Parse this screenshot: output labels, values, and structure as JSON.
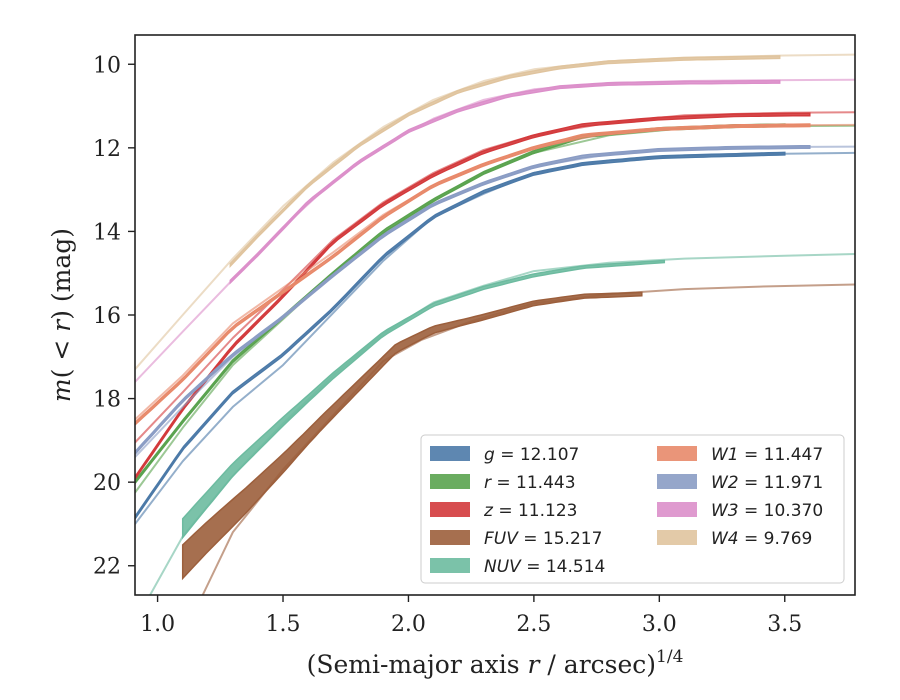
{
  "chart_data": {
    "type": "line",
    "xlabel": "(Semi-major axis r / arcsec)",
    "xlabel_main": "(Semi-major axis ",
    "xlabel_var": "r",
    "xlabel_rest": " / arcsec)",
    "xlabel_sup": "1/4",
    "ylabel": "m(< r) (mag)",
    "ylabel_m": "m",
    "ylabel_paren_open": "(",
    "ylabel_lt": " < ",
    "ylabel_r": "r",
    "ylabel_paren_close": ")",
    "ylabel_unit": " (mag)",
    "xlim": [
      0.91,
      3.78
    ],
    "ylim": [
      22.7,
      9.3
    ],
    "y_inverted": true,
    "xticks": [
      1.0,
      1.5,
      2.0,
      2.5,
      3.0,
      3.5
    ],
    "xtick_labels": [
      "1.0",
      "1.5",
      "2.0",
      "2.5",
      "3.0",
      "3.5"
    ],
    "yticks": [
      10,
      12,
      14,
      16,
      18,
      20,
      22
    ],
    "ytick_labels": [
      "10",
      "12",
      "14",
      "16",
      "18",
      "20",
      "22"
    ],
    "grid": false,
    "legend_position": "lower-right",
    "series": [
      {
        "name": "g",
        "label_value": "= 12.107",
        "color": "#4c7aa8",
        "band": [
          [
            0.91,
            20.85
          ],
          [
            1.1,
            19.2
          ],
          [
            1.3,
            17.85
          ],
          [
            1.5,
            16.95
          ],
          [
            1.7,
            15.85
          ],
          [
            1.9,
            14.6
          ],
          [
            2.1,
            13.65
          ],
          [
            2.3,
            13.05
          ],
          [
            2.5,
            12.62
          ],
          [
            2.7,
            12.38
          ],
          [
            3.0,
            12.22
          ],
          [
            3.3,
            12.17
          ],
          [
            3.5,
            12.14
          ]
        ],
        "tail": [
          [
            0.91,
            21.0
          ],
          [
            1.1,
            19.5
          ],
          [
            1.3,
            18.2
          ],
          [
            1.5,
            17.2
          ],
          [
            1.7,
            15.95
          ],
          [
            1.9,
            14.7
          ],
          [
            2.1,
            13.65
          ],
          [
            2.3,
            13.1
          ],
          [
            2.5,
            12.6
          ],
          [
            2.8,
            12.3
          ],
          [
            3.1,
            12.18
          ],
          [
            3.5,
            12.14
          ],
          [
            3.78,
            12.12
          ]
        ]
      },
      {
        "name": "r",
        "label_value": "= 11.443",
        "color": "#5aa34f",
        "band": [
          [
            0.91,
            20.0
          ],
          [
            1.1,
            18.55
          ],
          [
            1.3,
            17.1
          ],
          [
            1.5,
            16.05
          ],
          [
            1.7,
            15.0
          ],
          [
            1.9,
            14.0
          ],
          [
            2.1,
            13.25
          ],
          [
            2.3,
            12.6
          ],
          [
            2.5,
            12.1
          ],
          [
            2.7,
            11.72
          ],
          [
            3.0,
            11.55
          ],
          [
            3.3,
            11.48
          ],
          [
            3.5,
            11.46
          ]
        ],
        "tail": [
          [
            0.91,
            20.25
          ],
          [
            1.1,
            18.7
          ],
          [
            1.3,
            17.2
          ],
          [
            1.5,
            16.1
          ],
          [
            1.7,
            15.0
          ],
          [
            1.9,
            14.05
          ],
          [
            2.1,
            13.25
          ],
          [
            2.3,
            12.6
          ],
          [
            2.5,
            12.12
          ],
          [
            2.8,
            11.7
          ],
          [
            3.1,
            11.53
          ],
          [
            3.5,
            11.48
          ],
          [
            3.78,
            11.47
          ]
        ]
      },
      {
        "name": "z",
        "label_value": "= 11.123",
        "color": "#d33a3c",
        "band": [
          [
            0.91,
            19.9
          ],
          [
            1.1,
            18.25
          ],
          [
            1.3,
            16.75
          ],
          [
            1.5,
            15.55
          ],
          [
            1.7,
            14.25
          ],
          [
            1.9,
            13.35
          ],
          [
            2.1,
            12.65
          ],
          [
            2.3,
            12.1
          ],
          [
            2.5,
            11.72
          ],
          [
            2.7,
            11.45
          ],
          [
            3.0,
            11.3
          ],
          [
            3.3,
            11.22
          ],
          [
            3.6,
            11.2
          ]
        ],
        "tail": [
          [
            0.91,
            19.05
          ],
          [
            1.1,
            17.85
          ],
          [
            1.3,
            16.55
          ],
          [
            1.5,
            15.4
          ],
          [
            1.7,
            14.2
          ],
          [
            1.9,
            13.3
          ],
          [
            2.1,
            12.6
          ],
          [
            2.3,
            12.05
          ],
          [
            2.5,
            11.7
          ],
          [
            2.8,
            11.4
          ],
          [
            3.1,
            11.22
          ],
          [
            3.5,
            11.16
          ],
          [
            3.78,
            11.15
          ]
        ]
      },
      {
        "name": "FUV",
        "label_value": "= 15.217",
        "color": "#9c5f3c",
        "band": [
          [
            1.1,
            21.9
          ],
          [
            1.2,
            21.3
          ],
          [
            1.35,
            20.45
          ],
          [
            1.5,
            19.55
          ],
          [
            1.65,
            18.6
          ],
          [
            1.8,
            17.7
          ],
          [
            1.95,
            16.8
          ],
          [
            2.1,
            16.35
          ],
          [
            2.3,
            16.05
          ],
          [
            2.5,
            15.72
          ],
          [
            2.7,
            15.55
          ],
          [
            2.93,
            15.5
          ]
        ],
        "width": [
          [
            1.1,
            0.8
          ],
          [
            1.3,
            0.65
          ],
          [
            1.6,
            0.35
          ],
          [
            1.9,
            0.22
          ],
          [
            2.2,
            0.14
          ],
          [
            2.6,
            0.1
          ],
          [
            2.93,
            0.08
          ]
        ],
        "tail": [
          [
            1.18,
            22.7
          ],
          [
            1.3,
            21.2
          ],
          [
            1.5,
            19.7
          ],
          [
            1.7,
            18.4
          ],
          [
            1.9,
            17.1
          ],
          [
            2.05,
            16.6
          ],
          [
            2.25,
            16.15
          ],
          [
            2.5,
            15.72
          ],
          [
            2.8,
            15.5
          ],
          [
            3.1,
            15.38
          ],
          [
            3.4,
            15.32
          ],
          [
            3.78,
            15.27
          ]
        ]
      },
      {
        "name": "NUV",
        "label_value": "= 14.514",
        "color": "#6dbba0",
        "band": [
          [
            1.1,
            21.1
          ],
          [
            1.3,
            19.7
          ],
          [
            1.5,
            18.55
          ],
          [
            1.7,
            17.45
          ],
          [
            1.9,
            16.45
          ],
          [
            2.1,
            15.75
          ],
          [
            2.3,
            15.35
          ],
          [
            2.5,
            15.05
          ],
          [
            2.7,
            14.85
          ],
          [
            3.02,
            14.72
          ]
        ],
        "width": [
          [
            1.1,
            0.45
          ],
          [
            1.3,
            0.3
          ],
          [
            1.6,
            0.16
          ],
          [
            2.0,
            0.08
          ],
          [
            3.02,
            0.05
          ]
        ],
        "tail": [
          [
            0.97,
            22.7
          ],
          [
            1.1,
            21.3
          ],
          [
            1.3,
            19.85
          ],
          [
            1.5,
            18.6
          ],
          [
            1.7,
            17.45
          ],
          [
            1.9,
            16.45
          ],
          [
            2.1,
            15.7
          ],
          [
            2.3,
            15.3
          ],
          [
            2.5,
            14.95
          ],
          [
            2.8,
            14.75
          ],
          [
            3.1,
            14.65
          ],
          [
            3.5,
            14.58
          ],
          [
            3.78,
            14.54
          ]
        ]
      },
      {
        "name": "W1",
        "label_value": "= 11.447",
        "color": "#e8896a",
        "band": [
          [
            0.91,
            18.6
          ],
          [
            1.1,
            17.55
          ],
          [
            1.3,
            16.3
          ],
          [
            1.5,
            15.45
          ],
          [
            1.7,
            14.6
          ],
          [
            1.9,
            13.65
          ],
          [
            2.1,
            12.9
          ],
          [
            2.3,
            12.4
          ],
          [
            2.5,
            12.0
          ],
          [
            2.7,
            11.7
          ],
          [
            3.0,
            11.55
          ],
          [
            3.3,
            11.48
          ],
          [
            3.6,
            11.46
          ]
        ],
        "tail": [
          [
            0.91,
            18.5
          ],
          [
            1.1,
            17.45
          ],
          [
            1.3,
            16.2
          ],
          [
            1.5,
            15.35
          ],
          [
            1.7,
            14.5
          ],
          [
            1.9,
            13.6
          ],
          [
            2.1,
            12.9
          ],
          [
            2.3,
            12.4
          ],
          [
            2.5,
            12.0
          ],
          [
            2.8,
            11.65
          ],
          [
            3.1,
            11.5
          ],
          [
            3.5,
            11.46
          ],
          [
            3.78,
            11.45
          ]
        ]
      },
      {
        "name": "W2",
        "label_value": "= 11.971",
        "color": "#8a9cc4",
        "band": [
          [
            0.91,
            19.3
          ],
          [
            1.1,
            18.05
          ],
          [
            1.3,
            16.95
          ],
          [
            1.5,
            16.05
          ],
          [
            1.7,
            15.05
          ],
          [
            1.9,
            14.1
          ],
          [
            2.1,
            13.35
          ],
          [
            2.3,
            12.85
          ],
          [
            2.5,
            12.45
          ],
          [
            2.7,
            12.2
          ],
          [
            3.0,
            12.05
          ],
          [
            3.3,
            12.0
          ],
          [
            3.6,
            11.98
          ]
        ],
        "tail": [
          [
            0.91,
            19.4
          ],
          [
            1.1,
            18.2
          ],
          [
            1.3,
            17.0
          ],
          [
            1.5,
            16.05
          ],
          [
            1.7,
            15.05
          ],
          [
            1.9,
            14.1
          ],
          [
            2.1,
            13.35
          ],
          [
            2.3,
            12.85
          ],
          [
            2.5,
            12.45
          ],
          [
            2.8,
            12.15
          ],
          [
            3.1,
            12.02
          ],
          [
            3.5,
            11.98
          ],
          [
            3.78,
            11.97
          ]
        ]
      },
      {
        "name": "W3",
        "label_value": "= 10.370",
        "color": "#dc8fca",
        "band": [
          [
            1.29,
            15.2
          ],
          [
            1.4,
            14.55
          ],
          [
            1.6,
            13.3
          ],
          [
            1.8,
            12.35
          ],
          [
            2.0,
            11.6
          ],
          [
            2.2,
            11.1
          ],
          [
            2.4,
            10.75
          ],
          [
            2.6,
            10.55
          ],
          [
            2.8,
            10.47
          ],
          [
            3.1,
            10.44
          ],
          [
            3.48,
            10.42
          ]
        ],
        "tail": [
          [
            0.91,
            17.6
          ],
          [
            1.1,
            16.4
          ],
          [
            1.3,
            15.15
          ],
          [
            1.5,
            13.9
          ],
          [
            1.7,
            12.8
          ],
          [
            1.9,
            11.95
          ],
          [
            2.1,
            11.3
          ],
          [
            2.3,
            10.85
          ],
          [
            2.5,
            10.6
          ],
          [
            2.8,
            10.45
          ],
          [
            3.1,
            10.4
          ],
          [
            3.5,
            10.38
          ],
          [
            3.78,
            10.37
          ]
        ]
      },
      {
        "name": "W4",
        "label_value": "= 9.769",
        "color": "#e0c49e",
        "band": [
          [
            1.29,
            14.8
          ],
          [
            1.4,
            14.1
          ],
          [
            1.6,
            12.9
          ],
          [
            1.8,
            11.95
          ],
          [
            2.0,
            11.2
          ],
          [
            2.2,
            10.65
          ],
          [
            2.4,
            10.3
          ],
          [
            2.6,
            10.08
          ],
          [
            2.8,
            9.95
          ],
          [
            3.1,
            9.87
          ],
          [
            3.48,
            9.83
          ]
        ],
        "tail": [
          [
            0.91,
            17.3
          ],
          [
            1.1,
            16.0
          ],
          [
            1.3,
            14.65
          ],
          [
            1.5,
            13.4
          ],
          [
            1.7,
            12.35
          ],
          [
            1.9,
            11.5
          ],
          [
            2.1,
            10.85
          ],
          [
            2.3,
            10.4
          ],
          [
            2.5,
            10.12
          ],
          [
            2.8,
            9.93
          ],
          [
            3.1,
            9.84
          ],
          [
            3.5,
            9.79
          ],
          [
            3.78,
            9.77
          ]
        ]
      }
    ]
  }
}
